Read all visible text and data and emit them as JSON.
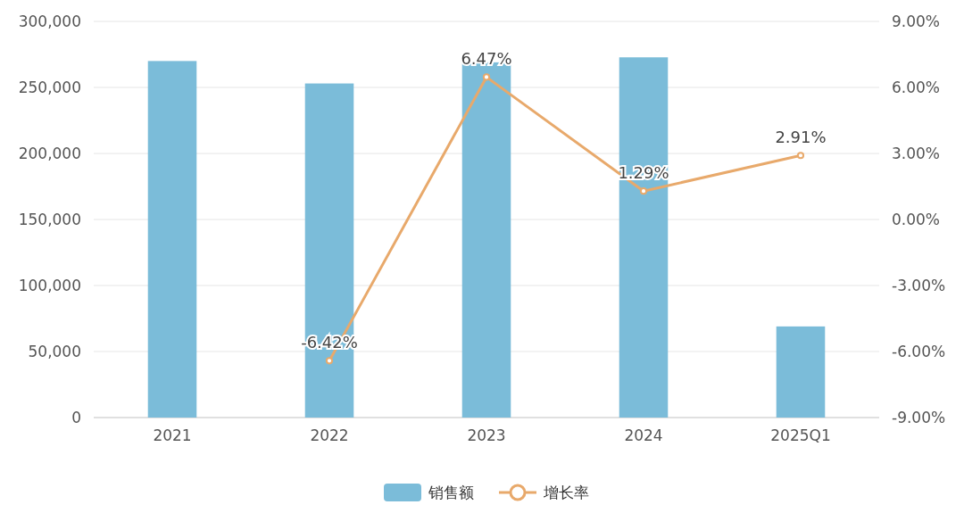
{
  "chart_data": {
    "type": "bar",
    "categories": [
      "2021",
      "2022",
      "2023",
      "2024",
      "2025Q1"
    ],
    "series": [
      {
        "name": "销售额",
        "color": "#7bbcd9",
        "values": [
          270000,
          253000,
          269000,
          272800,
          69000
        ]
      },
      {
        "name": "增长率",
        "type": "line",
        "axis": "y2",
        "color": "#e8a96b",
        "values": [
          null,
          -6.42,
          6.47,
          1.29,
          2.91
        ],
        "value_labels": [
          null,
          "-6.42%",
          "6.47%",
          "1.29%",
          "2.91%"
        ]
      }
    ],
    "ylim": [
      0,
      300000
    ],
    "yticks": [
      {
        "value": 0,
        "label": "0"
      },
      {
        "value": 50000,
        "label": "50,000"
      },
      {
        "value": 100000,
        "label": "100,000"
      },
      {
        "value": 150000,
        "label": "150,000"
      },
      {
        "value": 200000,
        "label": "200,000"
      },
      {
        "value": 250000,
        "label": "250,000"
      },
      {
        "value": 300000,
        "label": "300,000"
      }
    ],
    "y2lim": [
      -9,
      9
    ],
    "y2ticks": [
      {
        "value": -9,
        "label": "-9.00%"
      },
      {
        "value": -6,
        "label": "-6.00%"
      },
      {
        "value": -3,
        "label": "-3.00%"
      },
      {
        "value": 0,
        "label": "0.00%"
      },
      {
        "value": 3,
        "label": "3.00%"
      },
      {
        "value": 6,
        "label": "6.00%"
      },
      {
        "value": 9,
        "label": "9.00%"
      }
    ],
    "grid": "y",
    "legend": "bottom",
    "marker": "circle",
    "line_style": "solid"
  }
}
